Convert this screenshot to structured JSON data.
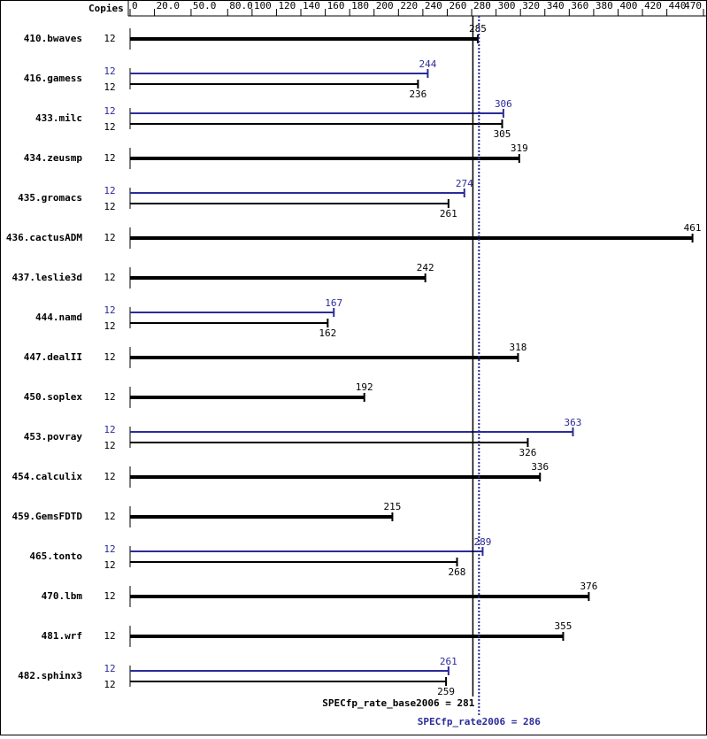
{
  "chart_data": {
    "type": "spec-bars",
    "copies_label": "Copies",
    "categories": [
      "410.bwaves",
      "416.gamess",
      "433.milc",
      "434.zeusmp",
      "435.gromacs",
      "436.cactusADM",
      "437.leslie3d",
      "444.namd",
      "447.dealII",
      "450.soplex",
      "453.povray",
      "454.calculix",
      "459.GemsFDTD",
      "465.tonto",
      "470.lbm",
      "481.wrf",
      "482.sphinx3"
    ],
    "series": [
      {
        "color": "#000000",
        "values": [
          285,
          236,
          305,
          319,
          261,
          461,
          242,
          162,
          318,
          192,
          326,
          336,
          215,
          268,
          376,
          355,
          259
        ],
        "copies": [
          12,
          12,
          12,
          12,
          12,
          12,
          12,
          12,
          12,
          12,
          12,
          12,
          12,
          12,
          12,
          12,
          12
        ]
      },
      {
        "color": "#2b2b9b",
        "values": [
          null,
          244,
          306,
          null,
          274,
          null,
          null,
          167,
          null,
          null,
          363,
          null,
          null,
          289,
          null,
          null,
          261
        ],
        "copies": [
          null,
          12,
          12,
          null,
          12,
          null,
          null,
          12,
          null,
          null,
          12,
          null,
          null,
          12,
          null,
          null,
          12
        ]
      }
    ],
    "xlim": [
      0,
      470
    ],
    "xticks": [
      0,
      {
        "value": 20,
        "label": "20.0"
      },
      {
        "value": 50,
        "label": "50.0"
      },
      {
        "value": 80,
        "label": "80.0"
      },
      100,
      120,
      140,
      160,
      180,
      200,
      220,
      240,
      260,
      280,
      300,
      320,
      340,
      360,
      380,
      400,
      420,
      440,
      470
    ],
    "reference_lines": [
      {
        "label": "SPECfp_rate_base2006 = 281",
        "value": 281,
        "color": "#000000",
        "style": "solid"
      },
      {
        "label": "SPECfp_rate2006 = 286",
        "value": 286,
        "color": "#2b2b9b",
        "style": "dotted"
      }
    ]
  }
}
